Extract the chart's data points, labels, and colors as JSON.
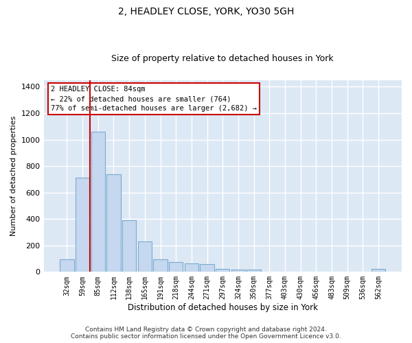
{
  "title1": "2, HEADLEY CLOSE, YORK, YO30 5GH",
  "title2": "Size of property relative to detached houses in York",
  "xlabel": "Distribution of detached houses by size in York",
  "ylabel": "Number of detached properties",
  "categories": [
    "32sqm",
    "59sqm",
    "85sqm",
    "112sqm",
    "138sqm",
    "165sqm",
    "191sqm",
    "218sqm",
    "244sqm",
    "271sqm",
    "297sqm",
    "324sqm",
    "350sqm",
    "377sqm",
    "403sqm",
    "430sqm",
    "456sqm",
    "483sqm",
    "509sqm",
    "536sqm",
    "562sqm"
  ],
  "values": [
    95,
    710,
    1060,
    740,
    390,
    230,
    95,
    75,
    65,
    60,
    25,
    15,
    15,
    0,
    0,
    0,
    0,
    0,
    0,
    0,
    20
  ],
  "bar_color": "#c5d8ef",
  "bar_edge_color": "#7aaace",
  "background_color": "#dde8f5",
  "grid_color": "#ffffff",
  "annotation_text": "2 HEADLEY CLOSE: 84sqm\n← 22% of detached houses are smaller (764)\n77% of semi-detached houses are larger (2,682) →",
  "annotation_box_color": "#ffffff",
  "annotation_box_edge": "#cc0000",
  "vline_color": "#cc0000",
  "vline_x_idx": 2,
  "ylim": [
    0,
    1450
  ],
  "yticks": [
    0,
    200,
    400,
    600,
    800,
    1000,
    1200,
    1400
  ],
  "footer": "Contains HM Land Registry data © Crown copyright and database right 2024.\nContains public sector information licensed under the Open Government Licence v3.0.",
  "title1_fontsize": 10,
  "title2_fontsize": 9,
  "annotation_fontsize": 7.5,
  "footer_fontsize": 6.5
}
